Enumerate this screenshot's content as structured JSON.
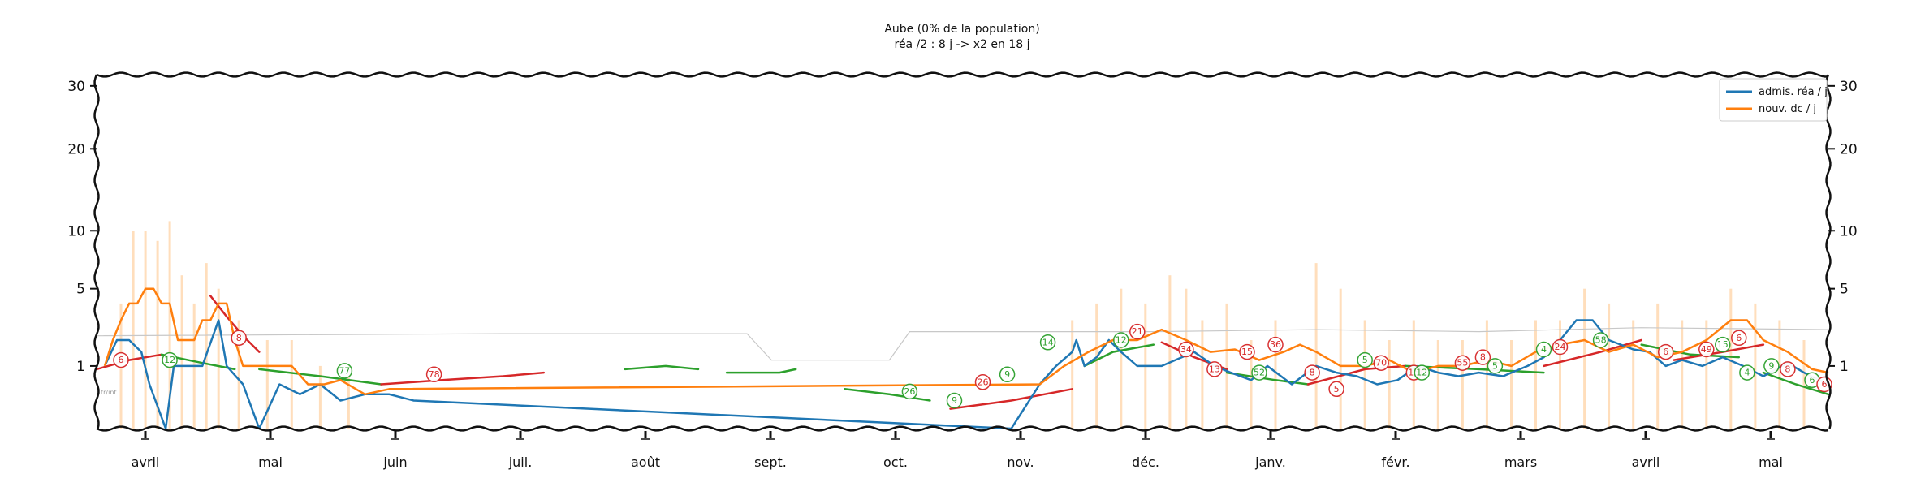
{
  "chart_data": {
    "type": "line",
    "title": "Aube (0% de la population)",
    "subtitle": "réa /2 : 8 j -> x2 en 18 j",
    "y_scale": "sqrt",
    "ylim": [
      0,
      32
    ],
    "yticks": [
      1,
      5,
      10,
      20,
      30
    ],
    "ytick_labels": [
      "1",
      "5",
      "10",
      "20",
      "30"
    ],
    "months": [
      "avril",
      "mai",
      "juin",
      "juil.",
      "août",
      "sept.",
      "oct.",
      "nov.",
      "déc.",
      "janv.",
      "févr.",
      "mars",
      "avril",
      "mai"
    ],
    "legend_position": "top-right",
    "grid": false,
    "colors": {
      "adm": "#1f77b4",
      "dc": "#ff7f0e",
      "green": "#2ca02c",
      "red": "#d62728",
      "bars": "#ffd8b0",
      "ref": "#c8c8c8"
    },
    "series": [
      {
        "name": "admis. réa / j",
        "color": "#1f77b4",
        "points": [
          [
            2,
            1
          ],
          [
            5,
            2
          ],
          [
            8,
            2
          ],
          [
            11,
            1.5
          ],
          [
            13,
            0.5
          ],
          [
            17,
            0
          ],
          [
            19,
            1
          ],
          [
            23,
            1
          ],
          [
            26,
            1
          ],
          [
            30,
            3
          ],
          [
            32,
            1
          ],
          [
            36,
            0.5
          ],
          [
            40,
            0
          ],
          [
            45,
            0.5
          ],
          [
            50,
            0.3
          ],
          [
            55,
            0.5
          ],
          [
            60,
            0.2
          ],
          [
            66,
            0.3
          ],
          [
            72,
            0.3
          ],
          [
            78,
            0.2
          ],
          [
            225,
            0
          ],
          [
            232,
            0.5
          ],
          [
            236,
            1
          ],
          [
            240,
            1.5
          ],
          [
            241,
            2
          ],
          [
            243,
            1
          ],
          [
            246,
            1.3
          ],
          [
            249,
            2
          ],
          [
            252,
            1.5
          ],
          [
            256,
            1
          ],
          [
            262,
            1
          ],
          [
            270,
            1.5
          ],
          [
            275,
            1
          ],
          [
            279,
            0.8
          ],
          [
            284,
            0.6
          ],
          [
            288,
            1
          ],
          [
            294,
            0.5
          ],
          [
            300,
            1
          ],
          [
            305,
            0.8
          ],
          [
            310,
            0.7
          ],
          [
            315,
            0.5
          ],
          [
            320,
            0.6
          ],
          [
            325,
            1
          ],
          [
            330,
            0.8
          ],
          [
            335,
            0.7
          ],
          [
            340,
            0.8
          ],
          [
            346,
            0.7
          ],
          [
            352,
            1
          ],
          [
            356,
            1.3
          ],
          [
            360,
            2
          ],
          [
            364,
            3
          ],
          [
            368,
            3
          ],
          [
            372,
            2
          ],
          [
            378,
            1.6
          ],
          [
            382,
            1.5
          ],
          [
            386,
            1
          ],
          [
            390,
            1.2
          ],
          [
            395,
            1
          ],
          [
            400,
            1.3
          ],
          [
            405,
            1
          ],
          [
            410,
            0.7
          ],
          [
            416,
            1.1
          ],
          [
            420,
            0.8
          ],
          [
            426,
            0.5
          ]
        ]
      },
      {
        "name": "nouv. dc / j",
        "color": "#ff7f0e",
        "points": [
          [
            2,
            1
          ],
          [
            4,
            2
          ],
          [
            6,
            3
          ],
          [
            8,
            4
          ],
          [
            10,
            4
          ],
          [
            12,
            5
          ],
          [
            14,
            5
          ],
          [
            16,
            4
          ],
          [
            18,
            4
          ],
          [
            20,
            2
          ],
          [
            22,
            2
          ],
          [
            24,
            2
          ],
          [
            26,
            3
          ],
          [
            28,
            3
          ],
          [
            30,
            4
          ],
          [
            32,
            4
          ],
          [
            34,
            2
          ],
          [
            36,
            1
          ],
          [
            40,
            1
          ],
          [
            44,
            1
          ],
          [
            48,
            1
          ],
          [
            52,
            0.5
          ],
          [
            56,
            0.5
          ],
          [
            60,
            0.6
          ],
          [
            66,
            0.3
          ],
          [
            72,
            0.4
          ],
          [
            232,
            0.5
          ],
          [
            238,
            1
          ],
          [
            244,
            1.5
          ],
          [
            250,
            2
          ],
          [
            256,
            2
          ],
          [
            262,
            2.5
          ],
          [
            268,
            2
          ],
          [
            274,
            1.5
          ],
          [
            280,
            1.6
          ],
          [
            286,
            1.2
          ],
          [
            292,
            1.5
          ],
          [
            296,
            1.8
          ],
          [
            300,
            1.5
          ],
          [
            306,
            1
          ],
          [
            312,
            1
          ],
          [
            318,
            1.2
          ],
          [
            324,
            0.8
          ],
          [
            330,
            1
          ],
          [
            336,
            1
          ],
          [
            342,
            1.2
          ],
          [
            348,
            1
          ],
          [
            354,
            1.5
          ],
          [
            360,
            1.8
          ],
          [
            366,
            2
          ],
          [
            372,
            1.5
          ],
          [
            378,
            1.8
          ],
          [
            384,
            1.3
          ],
          [
            390,
            1.5
          ],
          [
            396,
            2
          ],
          [
            402,
            3
          ],
          [
            406,
            3
          ],
          [
            410,
            2
          ],
          [
            416,
            1.5
          ],
          [
            422,
            0.9
          ],
          [
            426,
            0.8
          ]
        ]
      }
    ],
    "trend_segments": [
      {
        "color": "#d62728",
        "points": [
          [
            0,
            0.9
          ],
          [
            8,
            1.2
          ],
          [
            16,
            1.4
          ]
        ]
      },
      {
        "color": "#2ca02c",
        "points": [
          [
            16,
            1.4
          ],
          [
            26,
            1.1
          ],
          [
            34,
            0.9
          ]
        ]
      },
      {
        "color": "#d62728",
        "points": [
          [
            28,
            4.5
          ],
          [
            32,
            3.2
          ],
          [
            36,
            2.2
          ],
          [
            40,
            1.5
          ]
        ]
      },
      {
        "color": "#2ca02c",
        "points": [
          [
            40,
            0.9
          ],
          [
            55,
            0.7
          ],
          [
            70,
            0.5
          ]
        ]
      },
      {
        "color": "#d62728",
        "points": [
          [
            70,
            0.5
          ],
          [
            85,
            0.6
          ],
          [
            100,
            0.7
          ],
          [
            110,
            0.8
          ]
        ]
      },
      {
        "color": "#2ca02c",
        "points": [
          [
            130,
            0.9
          ],
          [
            140,
            1.0
          ],
          [
            148,
            0.9
          ]
        ]
      },
      {
        "color": "#2ca02c",
        "points": [
          [
            155,
            0.8
          ],
          [
            168,
            0.8
          ],
          [
            172,
            0.9
          ]
        ]
      },
      {
        "color": "#2ca02c",
        "points": [
          [
            184,
            0.4
          ],
          [
            195,
            0.3
          ],
          [
            205,
            0.2
          ]
        ]
      },
      {
        "color": "#d62728",
        "points": [
          [
            210,
            0.1
          ],
          [
            225,
            0.2
          ],
          [
            240,
            0.4
          ]
        ]
      },
      {
        "color": "#2ca02c",
        "points": [
          [
            243,
            1.0
          ],
          [
            250,
            1.5
          ],
          [
            260,
            1.8
          ]
        ]
      },
      {
        "color": "#d62728",
        "points": [
          [
            262,
            1.9
          ],
          [
            270,
            1.3
          ],
          [
            278,
            0.9
          ]
        ]
      },
      {
        "color": "#2ca02c",
        "points": [
          [
            278,
            0.8
          ],
          [
            290,
            0.6
          ],
          [
            298,
            0.5
          ]
        ]
      },
      {
        "color": "#d62728",
        "points": [
          [
            298,
            0.5
          ],
          [
            312,
            0.9
          ],
          [
            322,
            1.0
          ]
        ]
      },
      {
        "color": "#2ca02c",
        "points": [
          [
            322,
            1.0
          ],
          [
            340,
            0.9
          ],
          [
            356,
            0.8
          ]
        ]
      },
      {
        "color": "#d62728",
        "points": [
          [
            356,
            1.0
          ],
          [
            370,
            1.5
          ],
          [
            380,
            2.0
          ]
        ]
      },
      {
        "color": "#2ca02c",
        "points": [
          [
            380,
            1.8
          ],
          [
            392,
            1.4
          ],
          [
            404,
            1.3
          ]
        ]
      },
      {
        "color": "#d62728",
        "points": [
          [
            388,
            1.2
          ],
          [
            400,
            1.5
          ],
          [
            410,
            1.8
          ]
        ]
      },
      {
        "color": "#2ca02c",
        "points": [
          [
            410,
            0.8
          ],
          [
            418,
            0.5
          ],
          [
            426,
            0.3
          ]
        ]
      }
    ],
    "reference_line": [
      [
        0,
        2.2
      ],
      [
        100,
        2.3
      ],
      [
        160,
        2.3
      ],
      [
        166,
        1.2
      ],
      [
        195,
        1.2
      ],
      [
        200,
        2.4
      ],
      [
        260,
        2.4
      ],
      [
        300,
        2.5
      ],
      [
        340,
        2.4
      ],
      [
        380,
        2.6
      ],
      [
        426,
        2.5
      ]
    ],
    "daily_deaths_bars": [
      [
        6,
        4
      ],
      [
        9,
        10
      ],
      [
        12,
        10
      ],
      [
        15,
        9
      ],
      [
        18,
        11
      ],
      [
        21,
        6
      ],
      [
        24,
        4
      ],
      [
        27,
        7
      ],
      [
        30,
        5
      ],
      [
        35,
        3
      ],
      [
        42,
        2
      ],
      [
        48,
        2
      ],
      [
        55,
        1
      ],
      [
        62,
        1
      ],
      [
        240,
        3
      ],
      [
        246,
        4
      ],
      [
        252,
        5
      ],
      [
        258,
        4
      ],
      [
        264,
        6
      ],
      [
        268,
        5
      ],
      [
        272,
        3
      ],
      [
        278,
        4
      ],
      [
        284,
        2
      ],
      [
        290,
        3
      ],
      [
        300,
        7
      ],
      [
        306,
        5
      ],
      [
        312,
        3
      ],
      [
        318,
        2
      ],
      [
        324,
        3
      ],
      [
        330,
        2
      ],
      [
        336,
        2
      ],
      [
        342,
        3
      ],
      [
        348,
        2
      ],
      [
        354,
        3
      ],
      [
        360,
        3
      ],
      [
        366,
        5
      ],
      [
        372,
        4
      ],
      [
        378,
        3
      ],
      [
        384,
        4
      ],
      [
        390,
        3
      ],
      [
        396,
        3
      ],
      [
        402,
        5
      ],
      [
        408,
        4
      ],
      [
        414,
        3
      ],
      [
        420,
        2
      ]
    ],
    "badges": [
      {
        "label": "6",
        "x": 6,
        "y": 1.2,
        "color": "#d62728"
      },
      {
        "label": "12",
        "x": 18,
        "y": 1.2,
        "color": "#2ca02c"
      },
      {
        "label": "8",
        "x": 35,
        "y": 2.1,
        "color": "#d62728"
      },
      {
        "label": "77",
        "x": 61,
        "y": 0.85,
        "color": "#2ca02c"
      },
      {
        "label": "78",
        "x": 83,
        "y": 0.75,
        "color": "#d62728"
      },
      {
        "label": "26",
        "x": 200,
        "y": 0.35,
        "color": "#2ca02c"
      },
      {
        "label": "9",
        "x": 211,
        "y": 0.2,
        "color": "#2ca02c"
      },
      {
        "label": "26",
        "x": 218,
        "y": 0.55,
        "color": "#d62728"
      },
      {
        "label": "9",
        "x": 224,
        "y": 0.75,
        "color": "#2ca02c"
      },
      {
        "label": "14",
        "x": 234,
        "y": 1.9,
        "color": "#2ca02c"
      },
      {
        "label": "12",
        "x": 252,
        "y": 2.0,
        "color": "#2ca02c"
      },
      {
        "label": "21",
        "x": 256,
        "y": 2.4,
        "color": "#d62728"
      },
      {
        "label": "34",
        "x": 268,
        "y": 1.6,
        "color": "#d62728"
      },
      {
        "label": "13",
        "x": 275,
        "y": 0.9,
        "color": "#d62728"
      },
      {
        "label": "15",
        "x": 283,
        "y": 1.5,
        "color": "#d62728"
      },
      {
        "label": "36",
        "x": 290,
        "y": 1.8,
        "color": "#d62728"
      },
      {
        "label": "52",
        "x": 286,
        "y": 0.8,
        "color": "#2ca02c"
      },
      {
        "label": "8",
        "x": 299,
        "y": 0.8,
        "color": "#d62728"
      },
      {
        "label": "5",
        "x": 305,
        "y": 0.4,
        "color": "#d62728"
      },
      {
        "label": "5",
        "x": 312,
        "y": 1.2,
        "color": "#2ca02c"
      },
      {
        "label": "70",
        "x": 316,
        "y": 1.1,
        "color": "#d62728"
      },
      {
        "label": "15",
        "x": 324,
        "y": 0.8,
        "color": "#d62728"
      },
      {
        "label": "12",
        "x": 326,
        "y": 0.8,
        "color": "#2ca02c"
      },
      {
        "label": "55",
        "x": 336,
        "y": 1.1,
        "color": "#d62728"
      },
      {
        "label": "8",
        "x": 341,
        "y": 1.3,
        "color": "#d62728"
      },
      {
        "label": "5",
        "x": 344,
        "y": 1.0,
        "color": "#2ca02c"
      },
      {
        "label": "4",
        "x": 356,
        "y": 1.6,
        "color": "#2ca02c"
      },
      {
        "label": "24",
        "x": 360,
        "y": 1.7,
        "color": "#d62728"
      },
      {
        "label": "58",
        "x": 370,
        "y": 2.0,
        "color": "#2ca02c"
      },
      {
        "label": "6",
        "x": 386,
        "y": 1.5,
        "color": "#d62728"
      },
      {
        "label": "49",
        "x": 396,
        "y": 1.6,
        "color": "#d62728"
      },
      {
        "label": "15",
        "x": 400,
        "y": 1.8,
        "color": "#2ca02c"
      },
      {
        "label": "6",
        "x": 404,
        "y": 2.1,
        "color": "#d62728"
      },
      {
        "label": "4",
        "x": 406,
        "y": 0.8,
        "color": "#2ca02c"
      },
      {
        "label": "9",
        "x": 412,
        "y": 1.0,
        "color": "#2ca02c"
      },
      {
        "label": "8",
        "x": 416,
        "y": 0.9,
        "color": "#d62728"
      },
      {
        "label": "6",
        "x": 422,
        "y": 0.6,
        "color": "#2ca02c"
      },
      {
        "label": "6",
        "x": 425,
        "y": 0.5,
        "color": "#d62728"
      }
    ],
    "small_label": "tr/int"
  }
}
